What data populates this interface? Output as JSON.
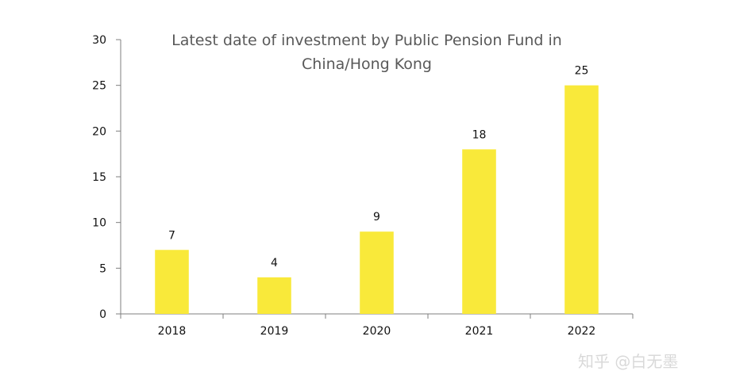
{
  "chart_data": {
    "type": "bar",
    "title": "Latest date of investment by Public Pension Fund in China/Hong Kong",
    "title_lines": [
      "Latest date of investment by Public Pension Fund in",
      "China/Hong Kong"
    ],
    "categories": [
      "2018",
      "2019",
      "2020",
      "2021",
      "2022"
    ],
    "values": [
      7,
      4,
      9,
      18,
      25
    ],
    "data_labels": [
      "7",
      "4",
      "9",
      "18",
      "25"
    ],
    "ylim": [
      0,
      30
    ],
    "y_ticks": [
      0,
      5,
      10,
      15,
      20,
      25,
      30
    ],
    "xlabel": "",
    "ylabel": "",
    "grid": false,
    "legend": "none",
    "bar_color": "#f9e93a"
  },
  "watermark": {
    "text": "知乎 @白无墨"
  }
}
